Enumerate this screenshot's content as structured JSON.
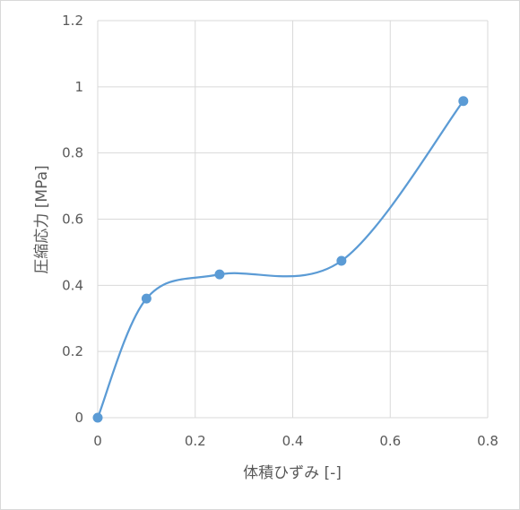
{
  "chart_data": {
    "type": "line",
    "smooth": true,
    "markers": true,
    "title": "",
    "xlabel": "体積ひずみ [-]",
    "ylabel": "圧縮応力 [MPa]",
    "xlim": [
      0,
      0.8
    ],
    "ylim": [
      0,
      1.2
    ],
    "xticks": [
      0,
      0.2,
      0.4,
      0.6,
      0.8
    ],
    "yticks": [
      0,
      0.2,
      0.4,
      0.6,
      0.8,
      1,
      1.2
    ],
    "grid": true,
    "legend": "none",
    "series": [
      {
        "color": "#5b9bd5",
        "x": [
          0,
          0.1,
          0.25,
          0.5,
          0.75
        ],
        "y": [
          0,
          0.36,
          0.433,
          0.474,
          0.957
        ]
      }
    ]
  }
}
